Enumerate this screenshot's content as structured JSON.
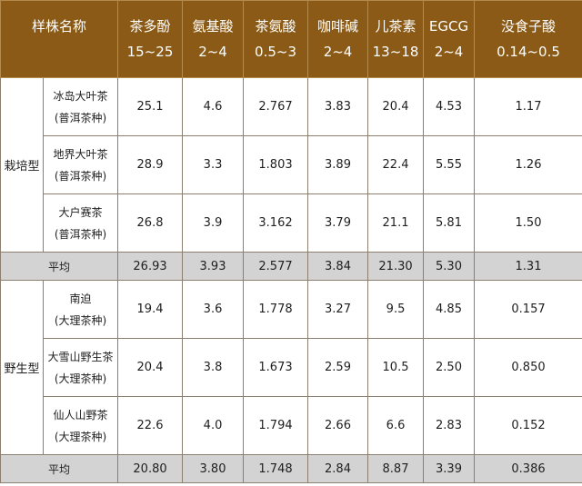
{
  "header": {
    "sample_name": "样株名称",
    "columns": [
      {
        "label": "茶多酚",
        "range": "15~25"
      },
      {
        "label": "氨基酸",
        "range": "2~4"
      },
      {
        "label": "茶氨酸",
        "range": "0.5~3"
      },
      {
        "label": "咖啡碱",
        "range": "2~4"
      },
      {
        "label": "儿茶素",
        "range": "13~18"
      },
      {
        "label": "EGCG",
        "range": "2~4"
      },
      {
        "label": "没食子酸",
        "range": "0.14~0.5"
      }
    ]
  },
  "groups": [
    {
      "name": "栽培型",
      "rows": [
        {
          "name": "冰岛大叶茶",
          "variety": "(普洱茶种)",
          "values": [
            "25.1",
            "4.6",
            "2.767",
            "3.83",
            "20.4",
            "4.53",
            "1.17"
          ]
        },
        {
          "name": "地界大叶茶",
          "variety": "(普洱茶种)",
          "values": [
            "28.9",
            "3.3",
            "1.803",
            "3.89",
            "22.4",
            "5.55",
            "1.26"
          ]
        },
        {
          "name": "大户赛茶",
          "variety": "(普洱茶种)",
          "values": [
            "26.8",
            "3.9",
            "3.162",
            "3.79",
            "21.1",
            "5.81",
            "1.50"
          ]
        }
      ],
      "average": {
        "label": "平均",
        "values": [
          "26.93",
          "3.93",
          "2.577",
          "3.84",
          "21.30",
          "5.30",
          "1.31"
        ]
      }
    },
    {
      "name": "野生型",
      "rows": [
        {
          "name": "南迫",
          "variety": "(大理茶种)",
          "values": [
            "19.4",
            "3.6",
            "1.778",
            "3.27",
            "9.5",
            "4.85",
            "0.157"
          ]
        },
        {
          "name": "大雪山野生茶",
          "variety": "(大理茶种)",
          "values": [
            "20.4",
            "3.8",
            "1.673",
            "2.59",
            "10.5",
            "2.50",
            "0.850"
          ]
        },
        {
          "name": "仙人山野茶",
          "variety": "(大理茶种)",
          "values": [
            "22.6",
            "4.0",
            "1.794",
            "2.66",
            "6.6",
            "2.83",
            "0.152"
          ]
        }
      ],
      "average": {
        "label": "平均",
        "values": [
          "20.80",
          "3.80",
          "1.748",
          "2.84",
          "8.87",
          "3.39",
          "0.386"
        ]
      }
    }
  ]
}
